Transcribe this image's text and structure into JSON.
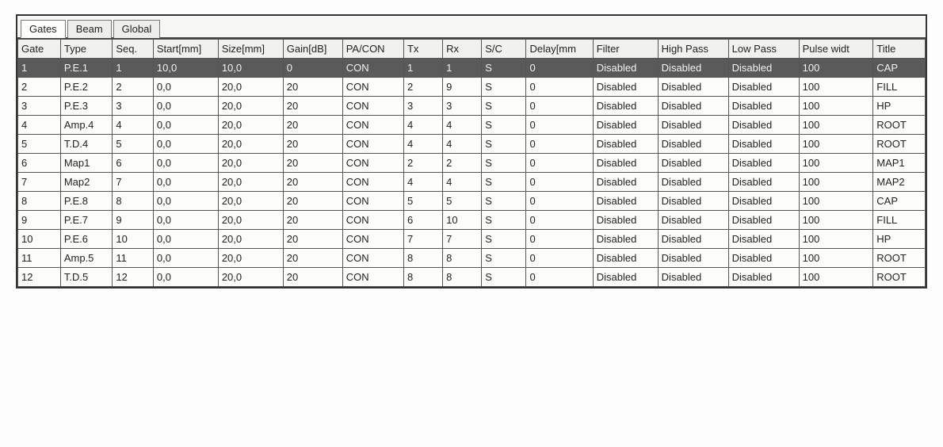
{
  "tabs": {
    "active_index": 0,
    "items": [
      {
        "label": "Gates"
      },
      {
        "label": "Beam"
      },
      {
        "label": "Global"
      }
    ]
  },
  "table": {
    "selected_row": 0,
    "columns": [
      "Gate",
      "Type",
      "Seq.",
      "Start[mm]",
      "Size[mm]",
      "Gain[dB]",
      "PA/CON",
      "Tx",
      "Rx",
      "S/C",
      "Delay[mm",
      "Filter",
      "High Pass",
      "Low Pass",
      "Pulse widt",
      "Title"
    ],
    "rows": [
      [
        "1",
        "P.E.1",
        "1",
        "10,0",
        "10,0",
        "0",
        "CON",
        "1",
        "1",
        "S",
        "0",
        "Disabled",
        "Disabled",
        "Disabled",
        "100",
        "CAP"
      ],
      [
        "2",
        "P.E.2",
        "2",
        "0,0",
        "20,0",
        "20",
        "CON",
        "2",
        "9",
        "S",
        "0",
        "Disabled",
        "Disabled",
        "Disabled",
        "100",
        "FILL"
      ],
      [
        "3",
        "P.E.3",
        "3",
        "0,0",
        "20,0",
        "20",
        "CON",
        "3",
        "3",
        "S",
        "0",
        "Disabled",
        "Disabled",
        "Disabled",
        "100",
        "HP"
      ],
      [
        "4",
        "Amp.4",
        "4",
        "0,0",
        "20,0",
        "20",
        "CON",
        "4",
        "4",
        "S",
        "0",
        "Disabled",
        "Disabled",
        "Disabled",
        "100",
        "ROOT"
      ],
      [
        "5",
        "T.D.4",
        "5",
        "0,0",
        "20,0",
        "20",
        "CON",
        "4",
        "4",
        "S",
        "0",
        "Disabled",
        "Disabled",
        "Disabled",
        "100",
        "ROOT"
      ],
      [
        "6",
        "Map1",
        "6",
        "0,0",
        "20,0",
        "20",
        "CON",
        "2",
        "2",
        "S",
        "0",
        "Disabled",
        "Disabled",
        "Disabled",
        "100",
        "MAP1"
      ],
      [
        "7",
        "Map2",
        "7",
        "0,0",
        "20,0",
        "20",
        "CON",
        "4",
        "4",
        "S",
        "0",
        "Disabled",
        "Disabled",
        "Disabled",
        "100",
        "MAP2"
      ],
      [
        "8",
        "P.E.8",
        "8",
        "0,0",
        "20,0",
        "20",
        "CON",
        "5",
        "5",
        "S",
        "0",
        "Disabled",
        "Disabled",
        "Disabled",
        "100",
        "CAP"
      ],
      [
        "9",
        "P.E.7",
        "9",
        "0,0",
        "20,0",
        "20",
        "CON",
        "6",
        "10",
        "S",
        "0",
        "Disabled",
        "Disabled",
        "Disabled",
        "100",
        "FILL"
      ],
      [
        "10",
        "P.E.6",
        "10",
        "0,0",
        "20,0",
        "20",
        "CON",
        "7",
        "7",
        "S",
        "0",
        "Disabled",
        "Disabled",
        "Disabled",
        "100",
        "HP"
      ],
      [
        "11",
        "Amp.5",
        "11",
        "0,0",
        "20,0",
        "20",
        "CON",
        "8",
        "8",
        "S",
        "0",
        "Disabled",
        "Disabled",
        "Disabled",
        "100",
        "ROOT"
      ],
      [
        "12",
        "T.D.5",
        "12",
        "0,0",
        "20,0",
        "20",
        "CON",
        "8",
        "8",
        "S",
        "0",
        "Disabled",
        "Disabled",
        "Disabled",
        "100",
        "ROOT"
      ]
    ]
  },
  "styles": {
    "selected_row_bg": "#5a5a5a",
    "selected_row_fg": "#f3f3f3",
    "header_bg": "#f1f1ee",
    "cell_bg": "#fcfcfa",
    "border_color": "#555555",
    "font_family": "Tahoma, Verdana, Arial, sans-serif",
    "font_size_pt": 10
  }
}
